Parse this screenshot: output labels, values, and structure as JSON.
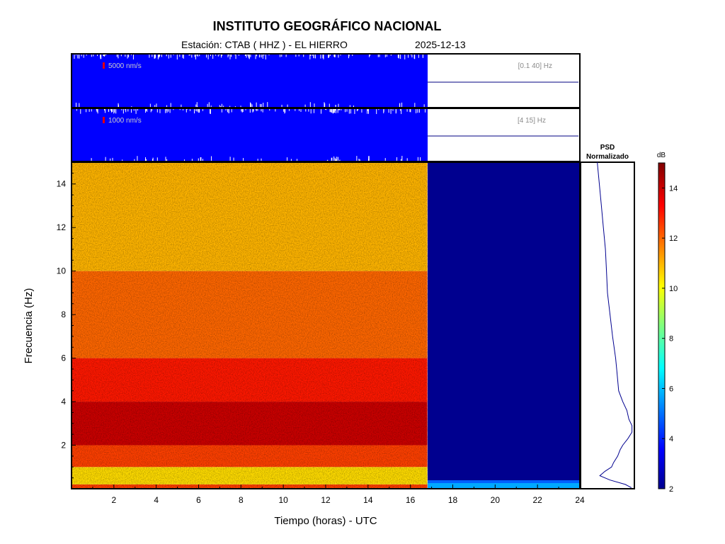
{
  "header": {
    "title": "INSTITUTO GEOGRÁFICO NACIONAL",
    "station_line": "Estación:  CTAB ( HHZ ) - EL HIERRO",
    "date": "2025-12-13"
  },
  "chart_data": [
    {
      "type": "line",
      "name": "seismogram-broadband",
      "scale_label": "5000 nm/s",
      "band_label": "[0.1 40]  Hz",
      "x_range": [
        0,
        24
      ],
      "data_end_hour": 16.8
    },
    {
      "type": "line",
      "name": "seismogram-filtered",
      "scale_label": "1000 nm/s",
      "band_label": "[4 15]  Hz",
      "x_range": [
        0,
        24
      ],
      "data_end_hour": 16.8
    },
    {
      "type": "heatmap",
      "name": "spectrogram",
      "xlabel": "Tiempo (horas) - UTC",
      "ylabel": "Frecuencia  (Hz)",
      "xlim": [
        0,
        24
      ],
      "ylim": [
        0,
        15
      ],
      "x_ticks": [
        "2",
        "4",
        "6",
        "8",
        "10",
        "12",
        "14",
        "16",
        "18",
        "20",
        "22",
        "24"
      ],
      "y_ticks": [
        "2",
        "4",
        "6",
        "8",
        "10",
        "12",
        "14"
      ],
      "data_end_hour": 16.8,
      "bands": [
        {
          "f_from": 0.0,
          "f_to": 0.2,
          "level_db": 12.5
        },
        {
          "f_from": 0.2,
          "f_to": 1.0,
          "level_db": 10.5
        },
        {
          "f_from": 1.0,
          "f_to": 2.0,
          "level_db": 12.5
        },
        {
          "f_from": 2.0,
          "f_to": 4.0,
          "level_db": 14.0
        },
        {
          "f_from": 4.0,
          "f_to": 6.0,
          "level_db": 13.0
        },
        {
          "f_from": 6.0,
          "f_to": 10.0,
          "level_db": 12.0
        },
        {
          "f_from": 10.0,
          "f_to": 15.0,
          "level_db": 11.0
        }
      ]
    },
    {
      "type": "line",
      "name": "psd-normalized",
      "title_line1": "PSD",
      "title_line2": "Normalizado",
      "freq": [
        0.05,
        0.2,
        0.4,
        0.6,
        0.8,
        1,
        1.2,
        1.5,
        1.8,
        2,
        2.3,
        2.6,
        2.9,
        3.2,
        3.6,
        4,
        4.5,
        5,
        5.5,
        6,
        7,
        8,
        9,
        10,
        11,
        12,
        13,
        14,
        15
      ],
      "value": [
        0.97,
        0.85,
        0.55,
        0.35,
        0.45,
        0.58,
        0.62,
        0.7,
        0.75,
        0.8,
        0.9,
        0.98,
        0.98,
        0.92,
        0.88,
        0.8,
        0.72,
        0.7,
        0.68,
        0.66,
        0.6,
        0.55,
        0.5,
        0.48,
        0.46,
        0.42,
        0.38,
        0.34,
        0.3
      ]
    },
    {
      "type": "heatmap",
      "name": "colorbar",
      "unit_label": "dB",
      "range": [
        2,
        15
      ],
      "ticks": [
        "2",
        "4",
        "6",
        "8",
        "10",
        "12",
        "14"
      ]
    }
  ]
}
